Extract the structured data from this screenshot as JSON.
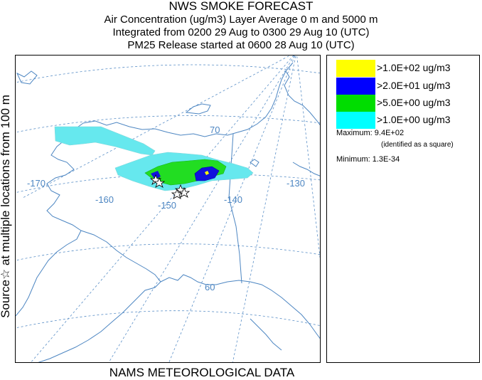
{
  "header": {
    "title": "NWS SMOKE FORECAST",
    "line2": "Air Concentration (ug/m3) Layer Average    0 m and  5000 m",
    "line3": "Integrated from 0200 29 Aug to 0300 29 Aug 10 (UTC)",
    "line4": "PM25 Release started at 0600 28 Aug 10 (UTC)"
  },
  "side_label": "Source☆  at multiple locations  from   100 m",
  "footer": "NAMS METEOROLOGICAL DATA",
  "map": {
    "longitude_labels": [
      "-170",
      "-160",
      "-150",
      "-140",
      "-130"
    ],
    "latitude_labels": [
      "70",
      "60"
    ],
    "colors": {
      "graticule": "#5a8fc7",
      "coastline": "#4d86c2",
      "label": "#4d86c2"
    }
  },
  "legend": {
    "items": [
      {
        "label": ">1.0E+02 ug/m3",
        "color": "#ffff00"
      },
      {
        "label": ">2.0E+01 ug/m3",
        "color": "#0000ff"
      },
      {
        "label": ">5.0E+00 ug/m3",
        "color": "#00dd00"
      },
      {
        "label": ">1.0E+00 ug/m3",
        "color": "#00ffff"
      }
    ],
    "maximum": "Maximum: 9.4E+02",
    "maximum_note": "(identified as a square)",
    "minimum": "Minimum: 1.3E-34"
  }
}
